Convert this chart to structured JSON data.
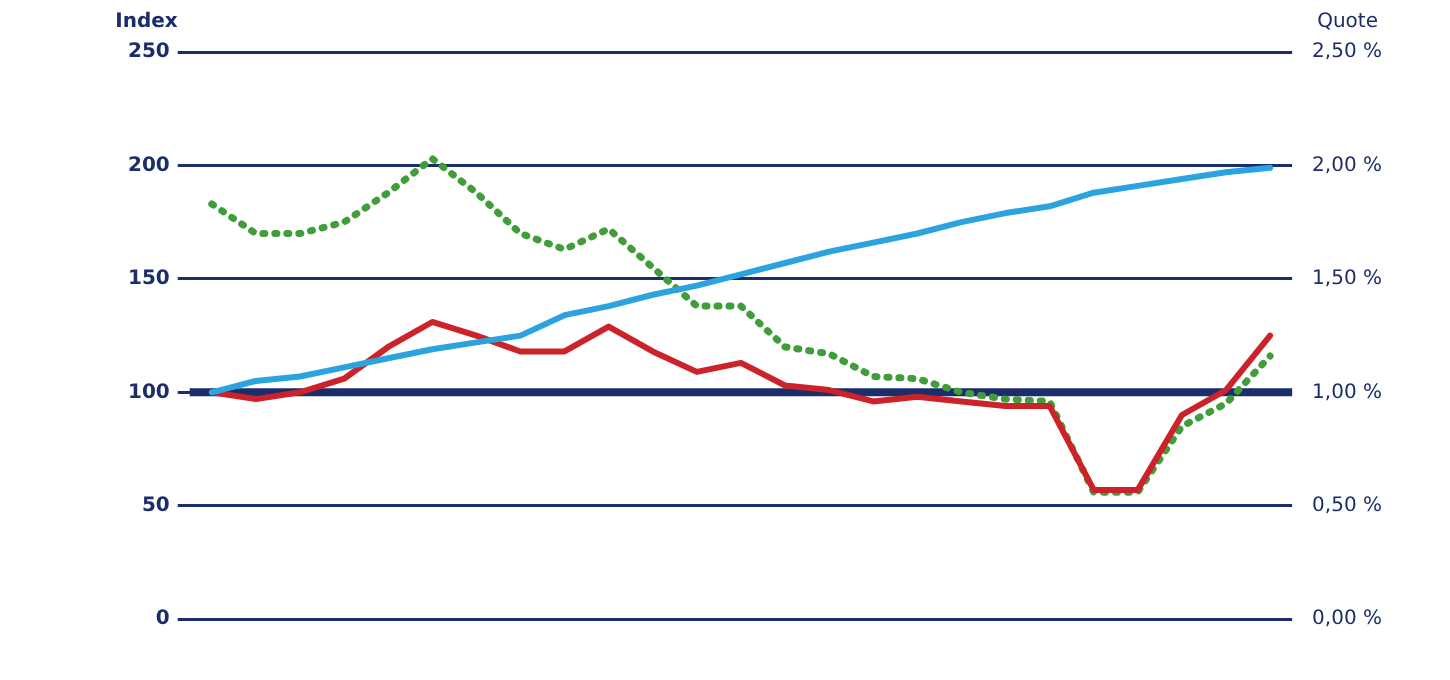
{
  "chart_data": {
    "type": "line",
    "ylabel": "Index",
    "y2label": "Quote",
    "categories": [
      null,
      null,
      null,
      null,
      null,
      null,
      null,
      null,
      null,
      null,
      null,
      null,
      null,
      null,
      null,
      null,
      null,
      null,
      null,
      null,
      null,
      null,
      null,
      null,
      null
    ],
    "series": [
      {
        "color": "#2ba3de",
        "values": [
          100,
          105,
          107,
          111,
          115,
          119,
          122,
          125,
          134,
          138,
          143,
          147,
          152,
          157,
          162,
          166,
          170,
          175,
          179,
          182,
          188,
          191,
          194,
          197,
          199
        ]
      },
      {
        "color": "#cc2229",
        "values": [
          100,
          97,
          100,
          106,
          120,
          131,
          125,
          118,
          118,
          129,
          118,
          109,
          113,
          103,
          101,
          96,
          98,
          96,
          94,
          94,
          57,
          57,
          90,
          101,
          125
        ]
      },
      {
        "color": "#3f9d3a",
        "axis": "y2",
        "line_style": "dotted",
        "values": [
          1.83,
          1.7,
          1.7,
          1.75,
          1.88,
          2.03,
          1.88,
          1.7,
          1.63,
          1.72,
          1.55,
          1.38,
          1.38,
          1.2,
          1.17,
          1.07,
          1.06,
          1.0,
          0.97,
          0.96,
          0.56,
          0.56,
          0.85,
          0.95,
          1.16
        ]
      }
    ],
    "ylim": [
      0,
      250
    ],
    "yticks": [
      0,
      50,
      100,
      150,
      200,
      250
    ],
    "y2lim": [
      0,
      2.5
    ],
    "y2ticks": [
      {
        "value": 0,
        "label": "0,00 %"
      },
      {
        "value": 0.5,
        "label": "0,50 %"
      },
      {
        "value": 1,
        "label": "1,00 %"
      },
      {
        "value": 1.5,
        "label": "1,50 %"
      },
      {
        "value": 2,
        "label": "2,00 %"
      },
      {
        "value": 2.5,
        "label": "2,50 %"
      }
    ],
    "ref_lines": [
      {
        "axis": "y",
        "value": 100,
        "color": "#1b2d6b"
      }
    ],
    "grid": "y",
    "legend": false,
    "marker": "none"
  }
}
